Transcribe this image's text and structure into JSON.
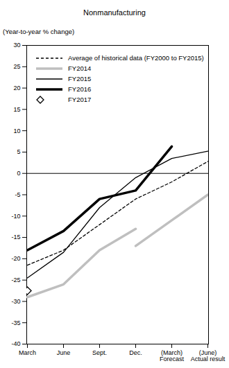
{
  "chart_data": {
    "type": "line",
    "title": "Nonmanufacturing",
    "y_label": "(Year-to-year % change)",
    "categories": [
      "March",
      "June",
      "Sept.",
      "Dec.",
      "(March)\nForecast",
      "(June)\nActual result"
    ],
    "ylim": [
      -40,
      30
    ],
    "yticks": [
      -40,
      -35,
      -30,
      -25,
      -20,
      -15,
      -10,
      -5,
      0,
      5,
      10,
      15,
      20,
      25,
      30
    ],
    "legend": "top-left",
    "series": [
      {
        "name": "Average of historical data (FY2000 to FY2015)",
        "color": "#000000",
        "line_style": "dashed",
        "values": [
          -21.5,
          -18,
          -12,
          -6,
          -2,
          2.8
        ]
      },
      {
        "name": "FY2014",
        "color": "#bfbfbf",
        "line_style": "thick",
        "values": [
          -29,
          -26,
          -18,
          -13,
          null,
          null
        ]
      },
      {
        "name": "FY2014",
        "color": "#bfbfbf",
        "line_style": "thick",
        "values": [
          null,
          null,
          null,
          -17,
          -11,
          -5
        ]
      },
      {
        "name": "FY2015",
        "color": "#000000",
        "line_style": "solid",
        "values": [
          -24.5,
          -18.5,
          -8,
          -1,
          3.5,
          5.2
        ]
      },
      {
        "name": "FY2016",
        "color": "#000000",
        "line_style": "thick",
        "values": [
          -18,
          -13.5,
          -6,
          -4,
          6.3,
          null
        ]
      },
      {
        "name": "FY2017",
        "color": "#000000",
        "type": "scatter",
        "marker": "diamond",
        "values": [
          -27.5,
          null,
          null,
          null,
          null,
          null
        ]
      }
    ]
  }
}
